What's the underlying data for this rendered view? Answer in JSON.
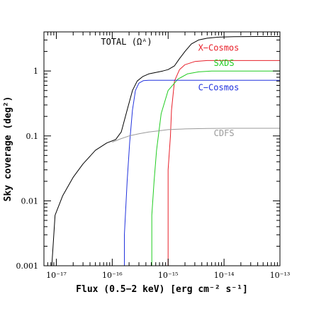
{
  "chart_data": {
    "type": "line",
    "xlabel": "Flux (0.5−2 keV) [erg cm⁻² s⁻¹]",
    "ylabel": "Sky coverage (deg²)",
    "xscale": "log",
    "yscale": "log",
    "xlim": [
      6e-18,
      1e-13
    ],
    "ylim": [
      0.001,
      4
    ],
    "x_ticks": [
      {
        "value": 1e-17,
        "label": "10⁻¹⁷"
      },
      {
        "value": 1e-16,
        "label": "10⁻¹⁶"
      },
      {
        "value": 1e-15,
        "label": "10⁻¹⁵"
      },
      {
        "value": 1e-14,
        "label": "10⁻¹⁴"
      },
      {
        "value": 1e-13,
        "label": "10⁻¹³"
      }
    ],
    "y_ticks": [
      {
        "value": 0.001,
        "label": "0.001"
      },
      {
        "value": 0.01,
        "label": "0.01"
      },
      {
        "value": 0.1,
        "label": "0.1"
      },
      {
        "value": 1,
        "label": "1"
      }
    ],
    "grid": false,
    "legend": "none",
    "series": [
      {
        "name": "TOTAL (Ωᴬ)",
        "color": "#000000",
        "x": [
          8.3e-18,
          9.5e-18,
          1.3e-17,
          2e-17,
          3e-17,
          5e-17,
          8e-17,
          1.15e-16,
          1.45e-16,
          1.85e-16,
          2.3e-16,
          2.8e-16,
          3.5e-16,
          4.5e-16,
          6e-16,
          8e-16,
          1e-15,
          1.3e-15,
          1.6e-15,
          2e-15,
          2.6e-15,
          3.5e-15,
          5e-15,
          8e-15,
          1.5e-14,
          4e-14,
          1e-13
        ],
        "y": [
          0.001,
          0.006,
          0.012,
          0.023,
          0.037,
          0.06,
          0.078,
          0.088,
          0.115,
          0.25,
          0.5,
          0.7,
          0.82,
          0.9,
          0.95,
          1.0,
          1.05,
          1.2,
          1.55,
          2.0,
          2.6,
          3.0,
          3.2,
          3.32,
          3.38,
          3.4,
          3.4
        ]
      },
      {
        "name": "X−Cosmos",
        "color": "#e8202a",
        "x": [
          1e-15,
          1e-15,
          1.1e-15,
          1.15e-15,
          1.3e-15,
          1.6e-15,
          2e-15,
          3e-15,
          5e-15,
          1e-14,
          3e-14,
          1e-13
        ],
        "y": [
          0.001,
          0.03,
          0.1,
          0.25,
          0.7,
          1.05,
          1.25,
          1.4,
          1.45,
          1.45,
          1.45,
          1.45
        ]
      },
      {
        "name": "SXDS",
        "color": "#22cc22",
        "x": [
          5.1e-16,
          5.1e-16,
          5.6e-16,
          6.2e-16,
          7.5e-16,
          1e-15,
          1.5e-15,
          2.2e-15,
          3.5e-15,
          6e-15,
          1.5e-14,
          1e-13
        ],
        "y": [
          0.001,
          0.006,
          0.02,
          0.06,
          0.22,
          0.5,
          0.75,
          0.9,
          0.97,
          1.0,
          1.0,
          1.0
        ]
      },
      {
        "name": "C−Cosmos",
        "color": "#2233dd",
        "x": [
          1.65e-16,
          1.65e-16,
          1.85e-16,
          2.05e-16,
          2.3e-16,
          2.6e-16,
          3e-16,
          3.6e-16,
          4.5e-16,
          6e-16,
          1e-15,
          1e-13
        ],
        "y": [
          0.001,
          0.003,
          0.02,
          0.08,
          0.25,
          0.5,
          0.65,
          0.71,
          0.72,
          0.72,
          0.72,
          0.72
        ]
      },
      {
        "name": "CDFS",
        "color": "#9a9a9a",
        "x": [
          1e-16,
          1.4e-16,
          2e-16,
          3e-16,
          4.5e-16,
          7e-16,
          1e-15,
          2e-15,
          5e-15,
          1.5e-14,
          1e-13
        ],
        "y": [
          0.08,
          0.09,
          0.1,
          0.108,
          0.115,
          0.12,
          0.125,
          0.128,
          0.13,
          0.131,
          0.131
        ]
      }
    ]
  }
}
